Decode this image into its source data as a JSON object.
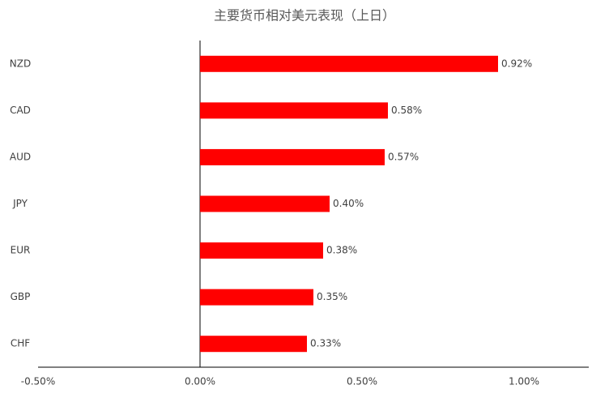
{
  "chart_data": {
    "type": "hbar",
    "title": "主要货币相对美元表现（上日）",
    "categories": [
      "NZD",
      "CAD",
      "AUD",
      "JPY",
      "EUR",
      "GBP",
      "CHF"
    ],
    "values": [
      0.92,
      0.58,
      0.57,
      0.4,
      0.38,
      0.35,
      0.33
    ],
    "value_labels": [
      "0.92%",
      "0.58%",
      "0.57%",
      "0.40%",
      "0.38%",
      "0.35%",
      "0.33%"
    ],
    "color": "#ff0000",
    "xlim": [
      -0.5,
      1.2
    ],
    "xticks": [
      {
        "value": -0.5,
        "label": "-0.50%"
      },
      {
        "value": 0,
        "label": "0.00%"
      },
      {
        "value": 0.5,
        "label": "0.50%"
      },
      {
        "value": 1.0,
        "label": "1.00%"
      }
    ],
    "grid": false
  }
}
